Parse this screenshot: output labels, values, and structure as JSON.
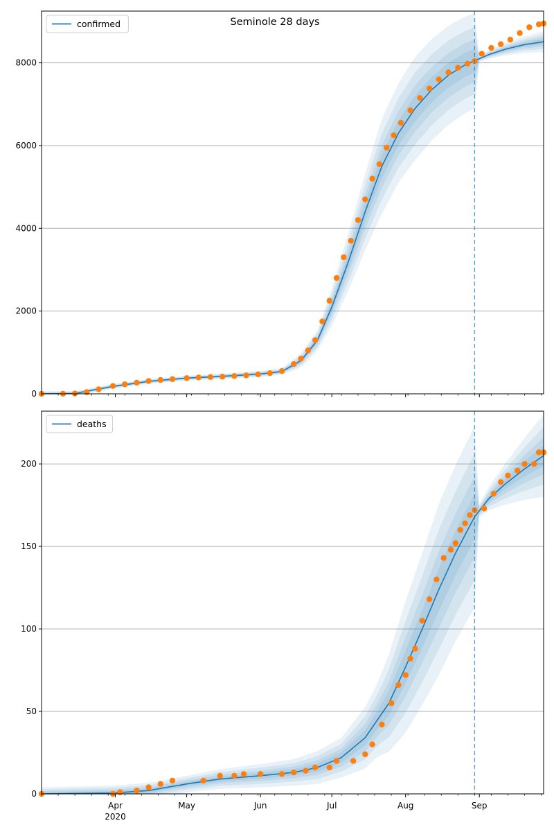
{
  "figure": {
    "title": "Seminole 28 days"
  },
  "colors": {
    "observed": "#ff7f0e",
    "model": "#1f77b4",
    "band": "#1f77b4",
    "grid": "#b0b0b0",
    "divider": "#1f77b4"
  },
  "x_axis": {
    "ticks": [
      {
        "label": "Apr",
        "date": "2020-04-01"
      },
      {
        "label": "May",
        "date": "2020-05-01"
      },
      {
        "label": "Jun",
        "date": "2020-06-01"
      },
      {
        "label": "Jul",
        "date": "2020-07-01"
      },
      {
        "label": "Aug",
        "date": "2020-08-01"
      },
      {
        "label": "Sep",
        "date": "2020-09-01"
      }
    ],
    "year_label": "2020",
    "range": [
      "2020-03-01",
      "2020-09-28"
    ]
  },
  "chart_data": [
    {
      "type": "line",
      "title": "Seminole 28 days",
      "legend": "confirmed",
      "legend_position": "top-left",
      "grid": "horizontal",
      "ylim": [
        0,
        9250
      ],
      "yticks": [
        0,
        2000,
        4000,
        6000,
        8000
      ],
      "forecast_start": "2020-08-30",
      "observed": [
        [
          "2020-03-01",
          0
        ],
        [
          "2020-03-10",
          2
        ],
        [
          "2020-03-15",
          8
        ],
        [
          "2020-03-20",
          40
        ],
        [
          "2020-03-25",
          110
        ],
        [
          "2020-03-31",
          190
        ],
        [
          "2020-04-05",
          230
        ],
        [
          "2020-04-10",
          270
        ],
        [
          "2020-04-15",
          310
        ],
        [
          "2020-04-20",
          335
        ],
        [
          "2020-04-25",
          355
        ],
        [
          "2020-05-01",
          380
        ],
        [
          "2020-05-06",
          395
        ],
        [
          "2020-05-11",
          405
        ],
        [
          "2020-05-16",
          415
        ],
        [
          "2020-05-21",
          430
        ],
        [
          "2020-05-26",
          445
        ],
        [
          "2020-05-31",
          470
        ],
        [
          "2020-06-05",
          500
        ],
        [
          "2020-06-10",
          550
        ],
        [
          "2020-06-15",
          720
        ],
        [
          "2020-06-18",
          850
        ],
        [
          "2020-06-21",
          1050
        ],
        [
          "2020-06-24",
          1300
        ],
        [
          "2020-06-27",
          1750
        ],
        [
          "2020-06-30",
          2250
        ],
        [
          "2020-07-03",
          2800
        ],
        [
          "2020-07-06",
          3300
        ],
        [
          "2020-07-09",
          3700
        ],
        [
          "2020-07-12",
          4200
        ],
        [
          "2020-07-15",
          4700
        ],
        [
          "2020-07-18",
          5200
        ],
        [
          "2020-07-21",
          5550
        ],
        [
          "2020-07-24",
          5950
        ],
        [
          "2020-07-27",
          6250
        ],
        [
          "2020-07-30",
          6550
        ],
        [
          "2020-08-03",
          6850
        ],
        [
          "2020-08-07",
          7150
        ],
        [
          "2020-08-11",
          7380
        ],
        [
          "2020-08-15",
          7600
        ],
        [
          "2020-08-19",
          7770
        ],
        [
          "2020-08-23",
          7880
        ],
        [
          "2020-08-27",
          7980
        ],
        [
          "2020-08-30",
          8040
        ],
        [
          "2020-09-02",
          8220
        ],
        [
          "2020-09-06",
          8360
        ],
        [
          "2020-09-10",
          8450
        ],
        [
          "2020-09-14",
          8560
        ],
        [
          "2020-09-18",
          8720
        ],
        [
          "2020-09-22",
          8860
        ],
        [
          "2020-09-26",
          8930
        ],
        [
          "2020-09-28",
          8950
        ]
      ],
      "model": [
        [
          "2020-03-01",
          0
        ],
        [
          "2020-03-15",
          8
        ],
        [
          "2020-03-31",
          180
        ],
        [
          "2020-04-15",
          300
        ],
        [
          "2020-05-01",
          380
        ],
        [
          "2020-05-15",
          420
        ],
        [
          "2020-06-01",
          480
        ],
        [
          "2020-06-10",
          540
        ],
        [
          "2020-06-18",
          800
        ],
        [
          "2020-06-25",
          1300
        ],
        [
          "2020-07-01",
          2100
        ],
        [
          "2020-07-08",
          3200
        ],
        [
          "2020-07-15",
          4400
        ],
        [
          "2020-07-22",
          5500
        ],
        [
          "2020-07-29",
          6300
        ],
        [
          "2020-08-05",
          6900
        ],
        [
          "2020-08-12",
          7350
        ],
        [
          "2020-08-19",
          7700
        ],
        [
          "2020-08-26",
          7950
        ],
        [
          "2020-08-30",
          8050
        ],
        [
          "2020-09-05",
          8200
        ],
        [
          "2020-09-12",
          8330
        ],
        [
          "2020-09-20",
          8440
        ],
        [
          "2020-09-28",
          8510
        ]
      ],
      "band_halfwidth": [
        [
          "2020-03-01",
          60
        ],
        [
          "2020-05-01",
          60
        ],
        [
          "2020-06-10",
          80
        ],
        [
          "2020-06-25",
          250
        ],
        [
          "2020-07-08",
          700
        ],
        [
          "2020-07-22",
          1150
        ],
        [
          "2020-08-05",
          1250
        ],
        [
          "2020-08-19",
          1200
        ],
        [
          "2020-08-30",
          1150
        ],
        [
          "2020-09-01",
          80
        ],
        [
          "2020-09-28",
          250
        ]
      ]
    },
    {
      "type": "line",
      "legend": "deaths",
      "legend_position": "top-left",
      "grid": "horizontal",
      "ylim": [
        0,
        232
      ],
      "yticks": [
        0,
        50,
        100,
        150,
        200
      ],
      "forecast_start": "2020-08-30",
      "observed": [
        [
          "2020-03-01",
          0
        ],
        [
          "2020-03-31",
          0
        ],
        [
          "2020-04-03",
          1
        ],
        [
          "2020-04-10",
          2
        ],
        [
          "2020-04-15",
          4
        ],
        [
          "2020-04-20",
          6
        ],
        [
          "2020-04-25",
          8
        ],
        [
          "2020-05-08",
          8
        ],
        [
          "2020-05-15",
          11
        ],
        [
          "2020-05-21",
          11
        ],
        [
          "2020-05-25",
          12
        ],
        [
          "2020-06-01",
          12
        ],
        [
          "2020-06-10",
          12
        ],
        [
          "2020-06-15",
          13
        ],
        [
          "2020-06-20",
          14
        ],
        [
          "2020-06-24",
          16
        ],
        [
          "2020-06-30",
          16
        ],
        [
          "2020-07-03",
          20
        ],
        [
          "2020-07-10",
          20
        ],
        [
          "2020-07-15",
          24
        ],
        [
          "2020-07-18",
          30
        ],
        [
          "2020-07-22",
          42
        ],
        [
          "2020-07-26",
          55
        ],
        [
          "2020-07-29",
          66
        ],
        [
          "2020-08-01",
          72
        ],
        [
          "2020-08-03",
          82
        ],
        [
          "2020-08-05",
          88
        ],
        [
          "2020-08-08",
          105
        ],
        [
          "2020-08-11",
          118
        ],
        [
          "2020-08-14",
          130
        ],
        [
          "2020-08-17",
          143
        ],
        [
          "2020-08-20",
          148
        ],
        [
          "2020-08-22",
          152
        ],
        [
          "2020-08-24",
          160
        ],
        [
          "2020-08-26",
          164
        ],
        [
          "2020-08-28",
          169
        ],
        [
          "2020-08-30",
          172
        ],
        [
          "2020-09-03",
          173
        ],
        [
          "2020-09-07",
          182
        ],
        [
          "2020-09-10",
          189
        ],
        [
          "2020-09-13",
          193
        ],
        [
          "2020-09-17",
          196
        ],
        [
          "2020-09-20",
          200
        ],
        [
          "2020-09-24",
          200
        ],
        [
          "2020-09-26",
          207
        ],
        [
          "2020-09-28",
          207
        ]
      ],
      "model": [
        [
          "2020-03-01",
          0
        ],
        [
          "2020-03-31",
          0.5
        ],
        [
          "2020-04-15",
          2
        ],
        [
          "2020-05-01",
          6
        ],
        [
          "2020-05-15",
          9
        ],
        [
          "2020-06-01",
          11
        ],
        [
          "2020-06-15",
          13
        ],
        [
          "2020-06-25",
          16
        ],
        [
          "2020-07-05",
          22
        ],
        [
          "2020-07-15",
          34
        ],
        [
          "2020-07-25",
          55
        ],
        [
          "2020-08-01",
          77
        ],
        [
          "2020-08-08",
          100
        ],
        [
          "2020-08-15",
          124
        ],
        [
          "2020-08-22",
          146
        ],
        [
          "2020-08-30",
          168
        ],
        [
          "2020-09-05",
          179
        ],
        [
          "2020-09-12",
          188
        ],
        [
          "2020-09-20",
          197
        ],
        [
          "2020-09-28",
          205
        ]
      ],
      "band_halfwidth": [
        [
          "2020-03-01",
          4
        ],
        [
          "2020-05-01",
          5
        ],
        [
          "2020-06-15",
          8
        ],
        [
          "2020-07-05",
          12
        ],
        [
          "2020-07-20",
          22
        ],
        [
          "2020-08-01",
          40
        ],
        [
          "2020-08-15",
          52
        ],
        [
          "2020-08-30",
          55
        ],
        [
          "2020-09-01",
          4
        ],
        [
          "2020-09-28",
          25
        ]
      ]
    }
  ]
}
